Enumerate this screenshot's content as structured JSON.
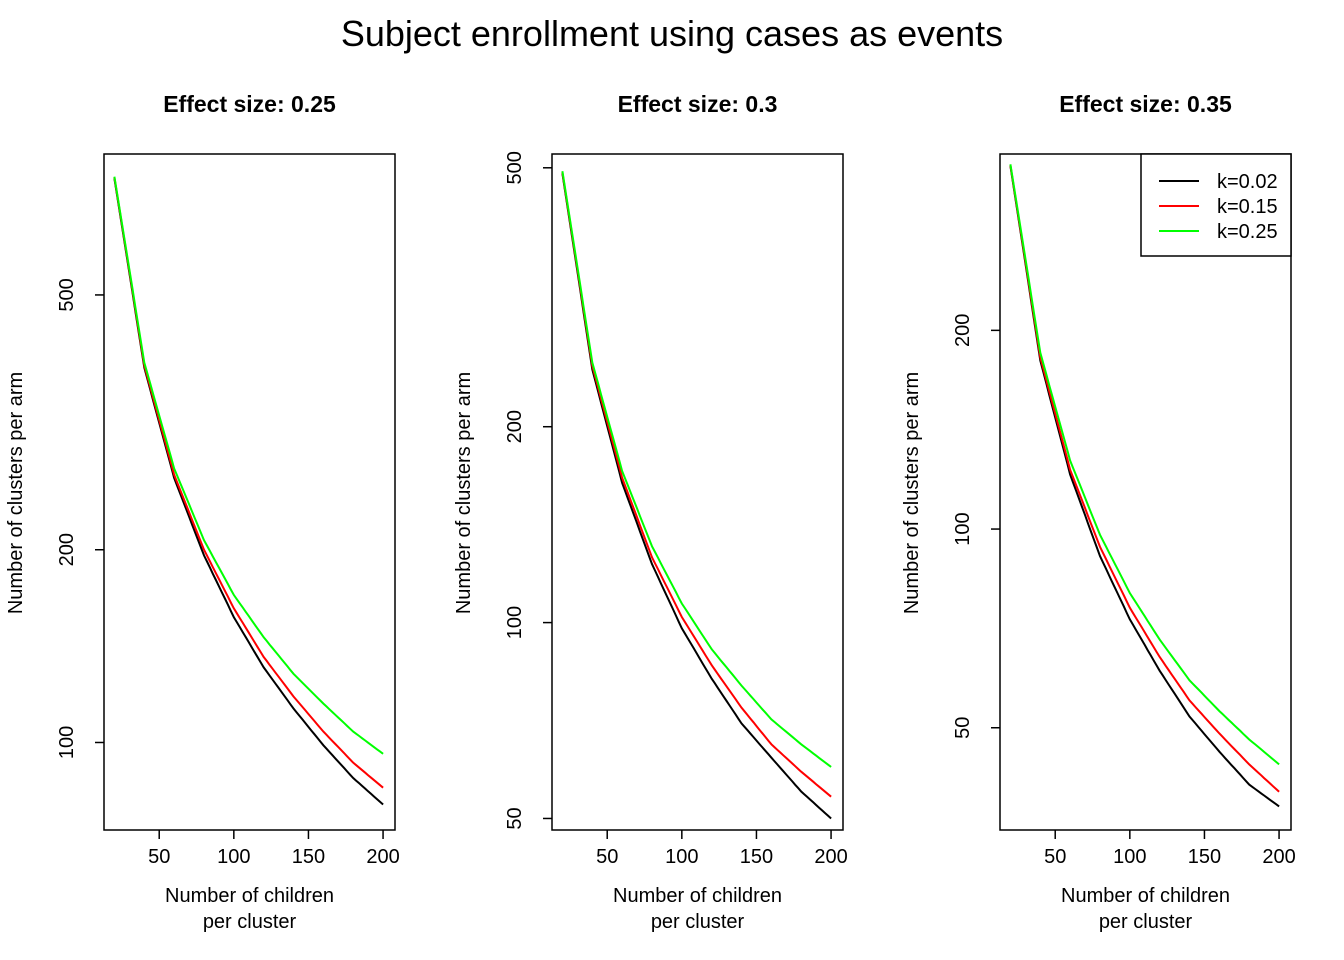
{
  "figure": {
    "title": "Subject enrollment using cases as events"
  },
  "legend": {
    "placement": "top-right of third panel",
    "entries": [
      {
        "label": "k=0.02",
        "color": "#000000"
      },
      {
        "label": "k=0.15",
        "color": "#ff0000"
      },
      {
        "label": "k=0.25",
        "color": "#00ff00"
      }
    ]
  },
  "chart_data": [
    {
      "type": "line",
      "title": "Effect size: 0.25",
      "xlabel": "Number of children\nper cluster",
      "ylabel": "Number of clusters per arm",
      "y_scale": "log",
      "xlim": [
        13,
        208
      ],
      "ylim": [
        73,
        830
      ],
      "xticks": [
        50,
        100,
        150,
        200
      ],
      "yticks": [
        100,
        200,
        500
      ],
      "grid": false,
      "x": [
        20,
        40,
        60,
        80,
        100,
        120,
        140,
        160,
        180,
        200
      ],
      "series": [
        {
          "name": "k=0.02",
          "color": "#000000",
          "values": [
            760,
            385,
            259,
            196,
            157,
            131,
            113,
            99,
            88,
            80
          ]
        },
        {
          "name": "k=0.15",
          "color": "#ff0000",
          "values": [
            763,
            388,
            262,
            200,
            162,
            136,
            118,
            104,
            93,
            85
          ]
        },
        {
          "name": "k=0.25",
          "color": "#00ff00",
          "values": [
            765,
            392,
            268,
            207,
            170,
            146,
            128,
            115,
            104,
            96
          ]
        }
      ]
    },
    {
      "type": "line",
      "title": "Effect size: 0.3",
      "xlabel": "Number of children\nper cluster",
      "ylabel": "Number of clusters per arm",
      "y_scale": "log",
      "xlim": [
        13,
        208
      ],
      "ylim": [
        48,
        525
      ],
      "xticks": [
        50,
        100,
        150,
        200
      ],
      "yticks": [
        50,
        100,
        200,
        500
      ],
      "grid": false,
      "x": [
        20,
        40,
        60,
        80,
        100,
        120,
        140,
        160,
        180,
        200
      ],
      "series": [
        {
          "name": "k=0.02",
          "color": "#000000",
          "values": [
            490,
            245,
            164,
            123,
            98,
            82,
            70,
            62,
            55,
            50
          ]
        },
        {
          "name": "k=0.15",
          "color": "#ff0000",
          "values": [
            492,
            248,
            167,
            126,
            102,
            86,
            74,
            65,
            59,
            54
          ]
        },
        {
          "name": "k=0.25",
          "color": "#00ff00",
          "values": [
            494,
            251,
            171,
            131,
            107,
            91,
            80,
            71,
            65,
            60
          ]
        }
      ]
    },
    {
      "type": "line",
      "title": "Effect size: 0.35",
      "xlabel": "Number of children\nper cluster",
      "ylabel": "Number of clusters per arm",
      "y_scale": "log",
      "xlim": [
        13,
        208
      ],
      "ylim": [
        35,
        370
      ],
      "xticks": [
        50,
        100,
        150,
        200
      ],
      "yticks": [
        50,
        100,
        200
      ],
      "grid": false,
      "x": [
        20,
        40,
        60,
        80,
        100,
        120,
        140,
        160,
        180,
        200
      ],
      "series": [
        {
          "name": "k=0.02",
          "color": "#000000",
          "values": [
            355,
            180,
            121,
            91,
            73,
            61,
            52,
            46,
            41,
            38
          ]
        },
        {
          "name": "k=0.15",
          "color": "#ff0000",
          "values": [
            356,
            182,
            123,
            94,
            76,
            64,
            55,
            49,
            44,
            40
          ]
        },
        {
          "name": "k=0.25",
          "color": "#00ff00",
          "values": [
            357,
            185,
            127,
            98,
            80,
            68,
            59,
            53,
            48,
            44
          ]
        }
      ]
    }
  ]
}
